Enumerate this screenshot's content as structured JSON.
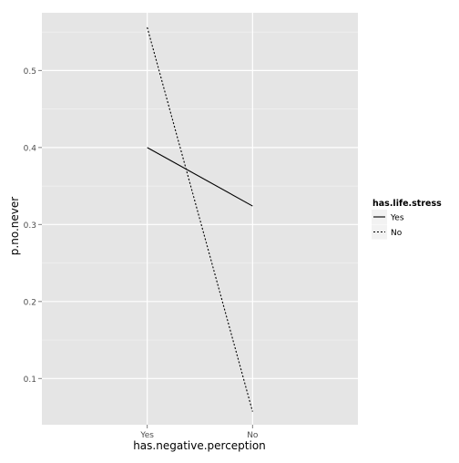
{
  "chart_data": {
    "type": "line",
    "categories": [
      "Yes",
      "No"
    ],
    "xlabel": "has.negative.perception",
    "ylabel": "p.no.never",
    "ylim": [
      0.04,
      0.575
    ],
    "yticks": [
      0.1,
      0.2,
      0.3,
      0.4,
      0.5
    ],
    "ytick_labels": [
      "0.1",
      "0.2",
      "0.3",
      "0.4",
      "0.5"
    ],
    "grid": true,
    "legend": {
      "title": "has.life.stress",
      "placement": "right"
    },
    "series": [
      {
        "name": "Yes",
        "values": [
          0.4,
          0.324
        ],
        "linetype": "solid",
        "color": "#000000"
      },
      {
        "name": "No",
        "values": [
          0.556,
          0.057
        ],
        "linetype": "dotted",
        "color": "#000000"
      }
    ],
    "colors": {
      "panel_background": "#e5e5e5",
      "grid_major": "#ffffff",
      "grid_minor": "#f2f2f2",
      "tick_label": "#4d4d4d"
    }
  }
}
